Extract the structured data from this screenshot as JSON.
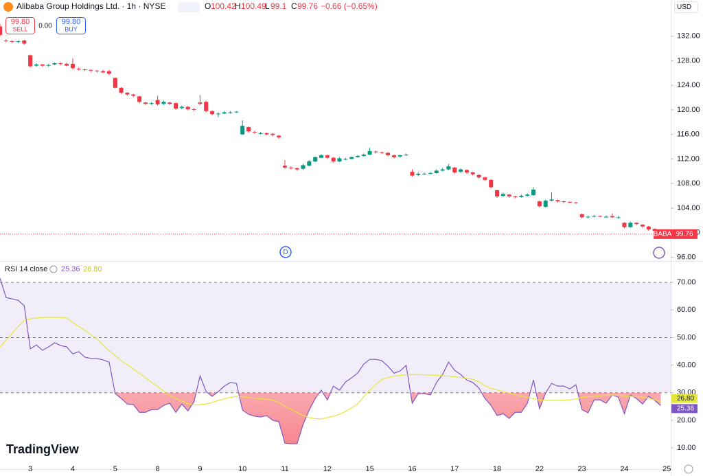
{
  "chart_data": [
    {
      "type": "candlestick",
      "title": "Alibaba Group Holdings Ltd. · 1h · NYSE",
      "symbol": "BABA",
      "currency": "USD",
      "ohlc_letters": [
        "O",
        "H",
        "L",
        "C"
      ],
      "change": "−0.66 (−0.65%)",
      "sell": {
        "price": "99.80",
        "label": "SELL"
      },
      "spread": "0.00",
      "buy": {
        "price": "99.80",
        "label": "BUY"
      },
      "event_label": "D",
      "future_labels": [
        "25"
      ],
      "up_color": "#089981",
      "down_color": "#f23645",
      "categories": [
        null,
        null,
        null,
        null,
        null,
        "3",
        null,
        null,
        null,
        null,
        null,
        null,
        "4",
        null,
        null,
        null,
        null,
        null,
        null,
        "5",
        null,
        null,
        null,
        null,
        null,
        null,
        "8",
        null,
        null,
        null,
        null,
        null,
        null,
        "9",
        null,
        null,
        null,
        null,
        null,
        null,
        "10",
        null,
        null,
        null,
        null,
        null,
        null,
        "11",
        null,
        null,
        null,
        null,
        null,
        null,
        "12",
        null,
        null,
        null,
        null,
        null,
        null,
        "15",
        null,
        null,
        null,
        null,
        null,
        null,
        "16",
        null,
        null,
        null,
        null,
        null,
        null,
        "17",
        null,
        null,
        null,
        null,
        null,
        null,
        "18",
        null,
        null,
        null,
        null,
        null,
        null,
        "22",
        null,
        null,
        null,
        null,
        null,
        null,
        "23",
        null,
        null,
        null,
        null,
        null,
        null,
        "24",
        null,
        null,
        null,
        null,
        null,
        null
      ],
      "open": [
        133.6,
        131.3,
        131.2,
        131.1,
        131.3,
        128.9,
        127.2,
        127.4,
        127.2,
        127.4,
        127.6,
        127.5,
        127.5,
        126.7,
        126.6,
        126.5,
        126.4,
        126.3,
        126.3,
        125.2,
        123.6,
        122.8,
        122.5,
        122.2,
        121.2,
        121.0,
        121.6,
        121.0,
        121.2,
        121.1,
        120.3,
        120.5,
        120.1,
        121.2,
        121.3,
        119.8,
        119.4,
        119.4,
        119.6,
        119.6,
        116.0,
        117.2,
        116.4,
        116.2,
        116.2,
        116.1,
        115.8,
        110.9,
        110.6,
        110.5,
        110.4,
        110.9,
        111.6,
        112.2,
        112.6,
        112.2,
        111.6,
        112.0,
        112.0,
        112.3,
        112.5,
        112.7,
        113.2,
        113.1,
        113.0,
        112.6,
        112.4,
        112.6,
        109.9,
        109.4,
        109.6,
        109.6,
        109.7,
        110.1,
        110.3,
        110.6,
        109.9,
        110.2,
        109.8,
        109.4,
        109.0,
        108.6,
        106.9,
        106.0,
        106.2,
        105.9,
        105.8,
        106.0,
        106.1,
        105.1,
        104.2,
        105.2,
        105.3,
        105.1,
        105.0,
        104.9,
        103.0,
        102.5,
        102.6,
        102.7,
        102.6,
        102.7,
        102.5,
        101.6,
        100.9,
        101.6,
        101.3,
        101.0,
        100.6,
        100.42
      ],
      "high": [
        134.0,
        131.5,
        131.3,
        131.3,
        131.4,
        129.0,
        127.6,
        127.5,
        127.5,
        127.7,
        127.7,
        127.7,
        128.4,
        126.9,
        126.7,
        126.6,
        126.5,
        126.5,
        126.5,
        125.3,
        123.7,
        122.9,
        122.6,
        122.3,
        121.3,
        121.3,
        122.3,
        121.5,
        121.3,
        121.2,
        120.7,
        120.6,
        120.3,
        122.4,
        121.5,
        119.9,
        119.6,
        119.8,
        119.8,
        119.8,
        118.3,
        117.3,
        116.6,
        116.4,
        116.3,
        116.2,
        115.9,
        111.8,
        110.8,
        110.6,
        111.2,
        111.8,
        112.4,
        112.8,
        112.7,
        112.3,
        112.3,
        112.2,
        112.4,
        112.6,
        112.9,
        113.8,
        113.4,
        113.2,
        113.1,
        112.7,
        112.7,
        112.9,
        110.3,
        109.8,
        109.8,
        109.9,
        110.3,
        110.5,
        111.2,
        110.7,
        110.5,
        110.3,
        109.9,
        109.5,
        109.1,
        108.7,
        107.0,
        106.5,
        106.3,
        106.0,
        106.2,
        106.4,
        107.4,
        105.2,
        105.4,
        106.6,
        105.4,
        105.2,
        105.1,
        105.0,
        103.1,
        102.8,
        102.9,
        102.8,
        102.8,
        103.1,
        102.7,
        101.7,
        101.8,
        101.7,
        101.4,
        101.1,
        100.7,
        100.49
      ],
      "low": [
        132.0,
        131.0,
        130.9,
        130.9,
        130.6,
        126.9,
        127.0,
        127.0,
        127.0,
        127.3,
        127.3,
        127.1,
        126.6,
        126.4,
        126.3,
        126.2,
        126.1,
        126.0,
        125.7,
        123.5,
        122.6,
        122.3,
        122.1,
        121.1,
        120.8,
        120.8,
        120.7,
        120.8,
        120.8,
        120.0,
        120.1,
        119.9,
        119.8,
        120.8,
        119.6,
        119.1,
        118.8,
        119.3,
        119.4,
        119.5,
        115.9,
        116.3,
        116.1,
        116.0,
        115.9,
        115.7,
        115.3,
        110.4,
        110.3,
        110.1,
        110.2,
        110.8,
        111.5,
        112.1,
        112.0,
        111.4,
        111.5,
        111.8,
        111.9,
        112.2,
        112.4,
        112.6,
        112.9,
        112.8,
        112.4,
        112.1,
        112.2,
        112.5,
        109.1,
        109.2,
        109.4,
        109.5,
        109.6,
        110.0,
        110.2,
        109.6,
        109.7,
        109.6,
        109.3,
        108.8,
        108.4,
        107.2,
        105.7,
        105.8,
        105.7,
        105.6,
        105.7,
        105.9,
        106.0,
        104.1,
        104.1,
        105.1,
        104.9,
        104.8,
        104.8,
        104.7,
        102.3,
        102.3,
        102.5,
        102.5,
        102.4,
        102.4,
        102.3,
        100.7,
        100.8,
        101.2,
        100.8,
        100.3,
        100.1,
        99.1
      ],
      "close": [
        132.2,
        131.2,
        131.1,
        131.2,
        130.8,
        127.1,
        127.4,
        127.2,
        127.3,
        127.6,
        127.5,
        127.2,
        126.8,
        126.6,
        126.5,
        126.4,
        126.3,
        126.1,
        125.9,
        123.6,
        122.8,
        122.5,
        122.3,
        121.3,
        121.0,
        121.1,
        120.9,
        121.3,
        121.0,
        120.2,
        120.5,
        120.1,
        120.0,
        121.0,
        119.8,
        119.3,
        119.4,
        119.6,
        119.6,
        119.7,
        117.4,
        116.5,
        116.3,
        116.2,
        116.0,
        115.9,
        115.5,
        110.6,
        110.5,
        110.3,
        111.0,
        111.6,
        112.3,
        112.6,
        112.2,
        111.6,
        112.1,
        112.0,
        112.3,
        112.5,
        112.7,
        113.3,
        113.1,
        113.0,
        112.6,
        112.3,
        112.6,
        112.7,
        109.3,
        109.6,
        109.6,
        109.7,
        110.1,
        110.3,
        110.8,
        109.8,
        110.3,
        109.8,
        109.5,
        109.0,
        108.6,
        107.4,
        105.9,
        106.3,
        105.9,
        105.8,
        106.0,
        106.2,
        107.0,
        104.3,
        105.2,
        105.4,
        105.1,
        105.0,
        104.9,
        104.8,
        102.5,
        102.6,
        102.7,
        102.6,
        102.6,
        102.5,
        102.5,
        100.9,
        101.6,
        101.4,
        101.0,
        100.5,
        100.3,
        99.76
      ],
      "ylim": [
        95.6,
        137.9
      ],
      "yticks": [
        {
          "value": 96,
          "label": "96.00"
        },
        {
          "value": 100,
          "label": "100.00"
        },
        {
          "value": 104,
          "label": "104.00"
        },
        {
          "value": 108,
          "label": "108.00"
        },
        {
          "value": 112,
          "label": "112.00"
        },
        {
          "value": 116,
          "label": "116.00"
        },
        {
          "value": 120,
          "label": "120.00"
        },
        {
          "value": 124,
          "label": "124.00"
        },
        {
          "value": 128,
          "label": "128.00"
        },
        {
          "value": 132,
          "label": "132.00"
        }
      ]
    },
    {
      "type": "line",
      "title": "RSI 14 close",
      "series": [
        {
          "color": "#7e57c2",
          "values": [
            71.5,
            64.5,
            64.0,
            63.5,
            61.5,
            45.9,
            47.3,
            45.4,
            46.6,
            48.1,
            47.1,
            46.6,
            44.1,
            44.9,
            42.9,
            42.4,
            42.4,
            41.9,
            41.1,
            29.7,
            27.9,
            25.9,
            25.7,
            22.9,
            22.9,
            23.9,
            23.9,
            25.4,
            26.2,
            22.9,
            25.9,
            23.4,
            26.7,
            36.1,
            30.4,
            28.7,
            30.4,
            32.4,
            33.7,
            33.4,
            23.7,
            22.2,
            21.5,
            21.2,
            21.7,
            20.0,
            19.5,
            11.7,
            11.5,
            11.5,
            18.5,
            23.7,
            27.9,
            30.9,
            27.4,
            32.4,
            30.9,
            33.9,
            35.4,
            37.1,
            40.4,
            42.1,
            42.1,
            41.6,
            39.6,
            37.1,
            37.9,
            39.9,
            26.2,
            29.7,
            29.7,
            29.2,
            33.7,
            36.6,
            41.1,
            38.1,
            36.6,
            34.6,
            33.7,
            31.7,
            27.9,
            25.4,
            21.7,
            22.4,
            20.7,
            22.9,
            22.9,
            26.2,
            34.6,
            24.2,
            29.9,
            33.4,
            32.4,
            32.4,
            31.4,
            32.9,
            23.9,
            22.7,
            27.4,
            27.4,
            26.2,
            29.2,
            28.4,
            22.4,
            29.2,
            27.9,
            25.9,
            28.7,
            27.2,
            25.36
          ]
        },
        {
          "color": "#e6e63a",
          "last_value_label": "26.80",
          "values": [
            46.6,
            49.0,
            51.5,
            54.0,
            56.2,
            56.8,
            57.1,
            57.3,
            57.3,
            57.3,
            57.3,
            57.1,
            55.5,
            54.0,
            52.6,
            51.0,
            49.4,
            47.2,
            45.3,
            43.5,
            41.6,
            40.2,
            38.6,
            37.0,
            35.4,
            33.8,
            32.2,
            30.6,
            29.0,
            27.9,
            27.0,
            26.0,
            25.5,
            25.7,
            25.9,
            26.5,
            27.2,
            27.8,
            28.3,
            28.7,
            28.5,
            28.2,
            28.0,
            27.8,
            27.6,
            27.3,
            26.5,
            25.0,
            24.0,
            22.8,
            21.7,
            21.0,
            20.6,
            20.5,
            21.0,
            21.5,
            22.2,
            23.2,
            24.5,
            26.0,
            28.5,
            31.0,
            33.0,
            34.8,
            35.5,
            36.0,
            36.3,
            36.5,
            36.6,
            36.6,
            36.5,
            36.4,
            36.3,
            36.2,
            36.0,
            35.8,
            35.5,
            35.2,
            34.9,
            34.0,
            32.5,
            31.5,
            31.0,
            30.4,
            29.9,
            29.3,
            28.8,
            28.3,
            27.9,
            27.3,
            27.2,
            27.2,
            27.2,
            27.3,
            27.4,
            27.8,
            28.3,
            28.5,
            28.7,
            28.9,
            29.1,
            29.2,
            29.1,
            28.9,
            28.7,
            28.6,
            28.4,
            28.0,
            27.4,
            26.8
          ]
        }
      ],
      "overbought": 70,
      "middle": 50,
      "oversold": 30,
      "band_color": "#7e57c2",
      "oversold_color": "#f23645",
      "ylim": [
        2.3,
        77.5
      ],
      "yticks": [
        {
          "value": 10,
          "label": "10.00"
        },
        {
          "value": 20,
          "label": "20.00"
        },
        {
          "value": 30,
          "label": "30.00"
        },
        {
          "value": 40,
          "label": "40.00"
        },
        {
          "value": 50,
          "label": "50.00"
        },
        {
          "value": 60,
          "label": "60.00"
        },
        {
          "value": 70,
          "label": "70.00"
        }
      ]
    }
  ],
  "footer": {
    "logo": "TradingView"
  }
}
